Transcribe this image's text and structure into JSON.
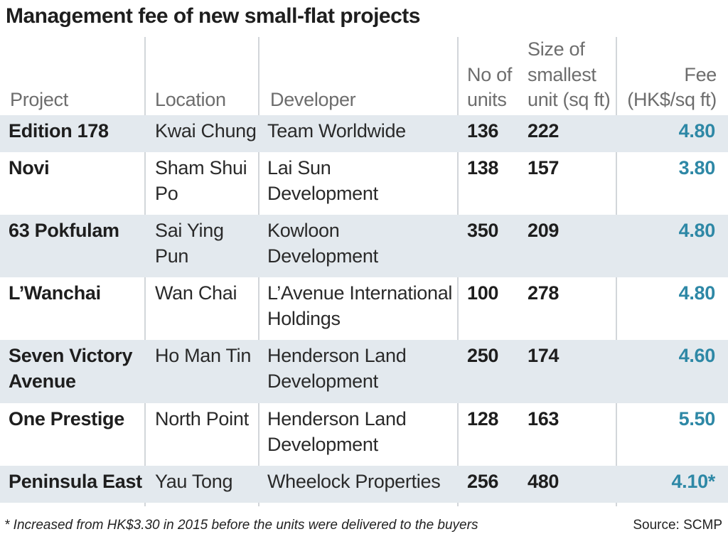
{
  "title": "Management fee of new small-flat projects",
  "headers": {
    "project": "Project",
    "location": "Location",
    "developer": "Developer",
    "units_line1": "No of",
    "units_line2": "units",
    "size_line1": "Size of",
    "size_line2": "smallest",
    "size_line3": "unit (sq ft)",
    "fee_line1": "Fee",
    "fee_line2": "(HK$/sq ft)"
  },
  "colors": {
    "row_shade": "#e3e9ee",
    "fee_text": "#2e88a6",
    "grid_line": "#d2d6da"
  },
  "rows": [
    {
      "project": [
        "Edition 178"
      ],
      "location": [
        "Kwai Chung"
      ],
      "developer": [
        "Team Worldwide"
      ],
      "units": "136",
      "size": "222",
      "fee": "4.80"
    },
    {
      "project": [
        "Novi"
      ],
      "location": [
        "Sham Shui",
        "Po"
      ],
      "developer": [
        "Lai Sun",
        "Development"
      ],
      "units": "138",
      "size": "157",
      "fee": "3.80"
    },
    {
      "project": [
        "63 Pokfulam"
      ],
      "location": [
        "Sai Ying",
        "Pun"
      ],
      "developer": [
        "Kowloon",
        "Development"
      ],
      "units": "350",
      "size": "209",
      "fee": "4.80"
    },
    {
      "project": [
        "L’Wanchai"
      ],
      "location": [
        "Wan Chai"
      ],
      "developer": [
        "L’Avenue International",
        "Holdings"
      ],
      "units": "100",
      "size": "278",
      "fee": "4.80"
    },
    {
      "project": [
        "Seven Victory",
        "Avenue"
      ],
      "location": [
        "Ho Man Tin"
      ],
      "developer": [
        "Henderson Land",
        "Development"
      ],
      "units": "250",
      "size": "174",
      "fee": "4.60"
    },
    {
      "project": [
        "One Prestige"
      ],
      "location": [
        "North Point"
      ],
      "developer": [
        "Henderson Land",
        "Development"
      ],
      "units": "128",
      "size": "163",
      "fee": "5.50"
    },
    {
      "project": [
        "Peninsula East"
      ],
      "location": [
        "Yau Tong"
      ],
      "developer": [
        "Wheelock Properties"
      ],
      "units": "256",
      "size": "480",
      "fee": "4.10*"
    }
  ],
  "footnote": "* Increased from HK$3.30 in 2015 before the units were delivered to the buyers",
  "source": "Source: SCMP",
  "chart_data": {
    "type": "table",
    "title": "Management fee of new small-flat projects",
    "columns": [
      "Project",
      "Location",
      "Developer",
      "No of units",
      "Size of smallest unit (sq ft)",
      "Fee (HK$/sq ft)"
    ],
    "rows": [
      [
        "Edition 178",
        "Kwai Chung",
        "Team Worldwide",
        136,
        222,
        4.8
      ],
      [
        "Novi",
        "Sham Shui Po",
        "Lai Sun Development",
        138,
        157,
        3.8
      ],
      [
        "63 Pokfulam",
        "Sai Ying Pun",
        "Kowloon Development",
        350,
        209,
        4.8
      ],
      [
        "L’Wanchai",
        "Wan Chai",
        "L’Avenue International Holdings",
        100,
        278,
        4.8
      ],
      [
        "Seven Victory Avenue",
        "Ho Man Tin",
        "Henderson Land Development",
        250,
        174,
        4.6
      ],
      [
        "One Prestige",
        "North Point",
        "Henderson Land Development",
        128,
        163,
        5.5
      ],
      [
        "Peninsula East",
        "Yau Tong",
        "Wheelock Properties",
        256,
        480,
        "4.10*"
      ]
    ]
  }
}
